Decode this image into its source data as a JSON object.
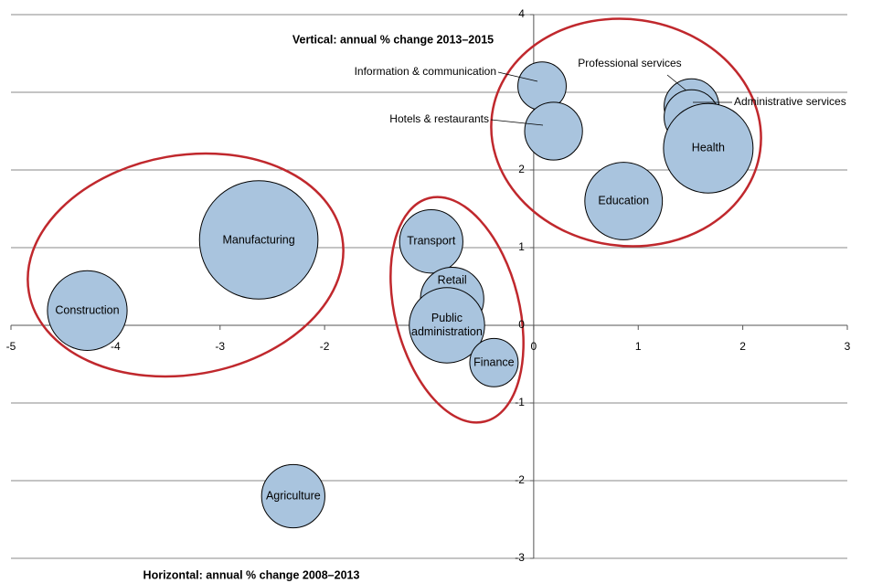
{
  "chart_data": {
    "type": "bubble",
    "x_title": "Horizontal: annual % change 2008–2013",
    "y_title": "Vertical: annual % change 2013–2015",
    "labels": [
      "Construction",
      "Manufacturing",
      "Agriculture",
      "Transport",
      "Retail",
      "Public administration",
      "Finance",
      "Information & communication",
      "Hotels & restaurants",
      "Education",
      "Professional services",
      "Administrative services",
      "Health"
    ],
    "x": [
      -4.27,
      -2.63,
      -2.3,
      -0.98,
      -0.78,
      -0.83,
      -0.38,
      0.08,
      0.19,
      0.86,
      1.51,
      1.51,
      1.67
    ],
    "y": [
      0.19,
      1.1,
      -2.2,
      1.08,
      0.34,
      0.0,
      -0.48,
      3.08,
      2.5,
      1.6,
      2.82,
      2.68,
      2.28
    ],
    "sizes": [
      19,
      42,
      12,
      12,
      12,
      17,
      7,
      7,
      10,
      18,
      9,
      9,
      24
    ],
    "color": "#a9c4de",
    "xlim": [
      -5,
      3
    ],
    "ylim": [
      -3,
      4
    ],
    "xticks": [
      -5,
      -4,
      -3,
      -2,
      -1,
      0,
      1,
      2,
      3
    ],
    "yticks": [
      -3,
      -2,
      -1,
      0,
      1,
      2,
      3,
      4
    ],
    "grid": true
  }
}
